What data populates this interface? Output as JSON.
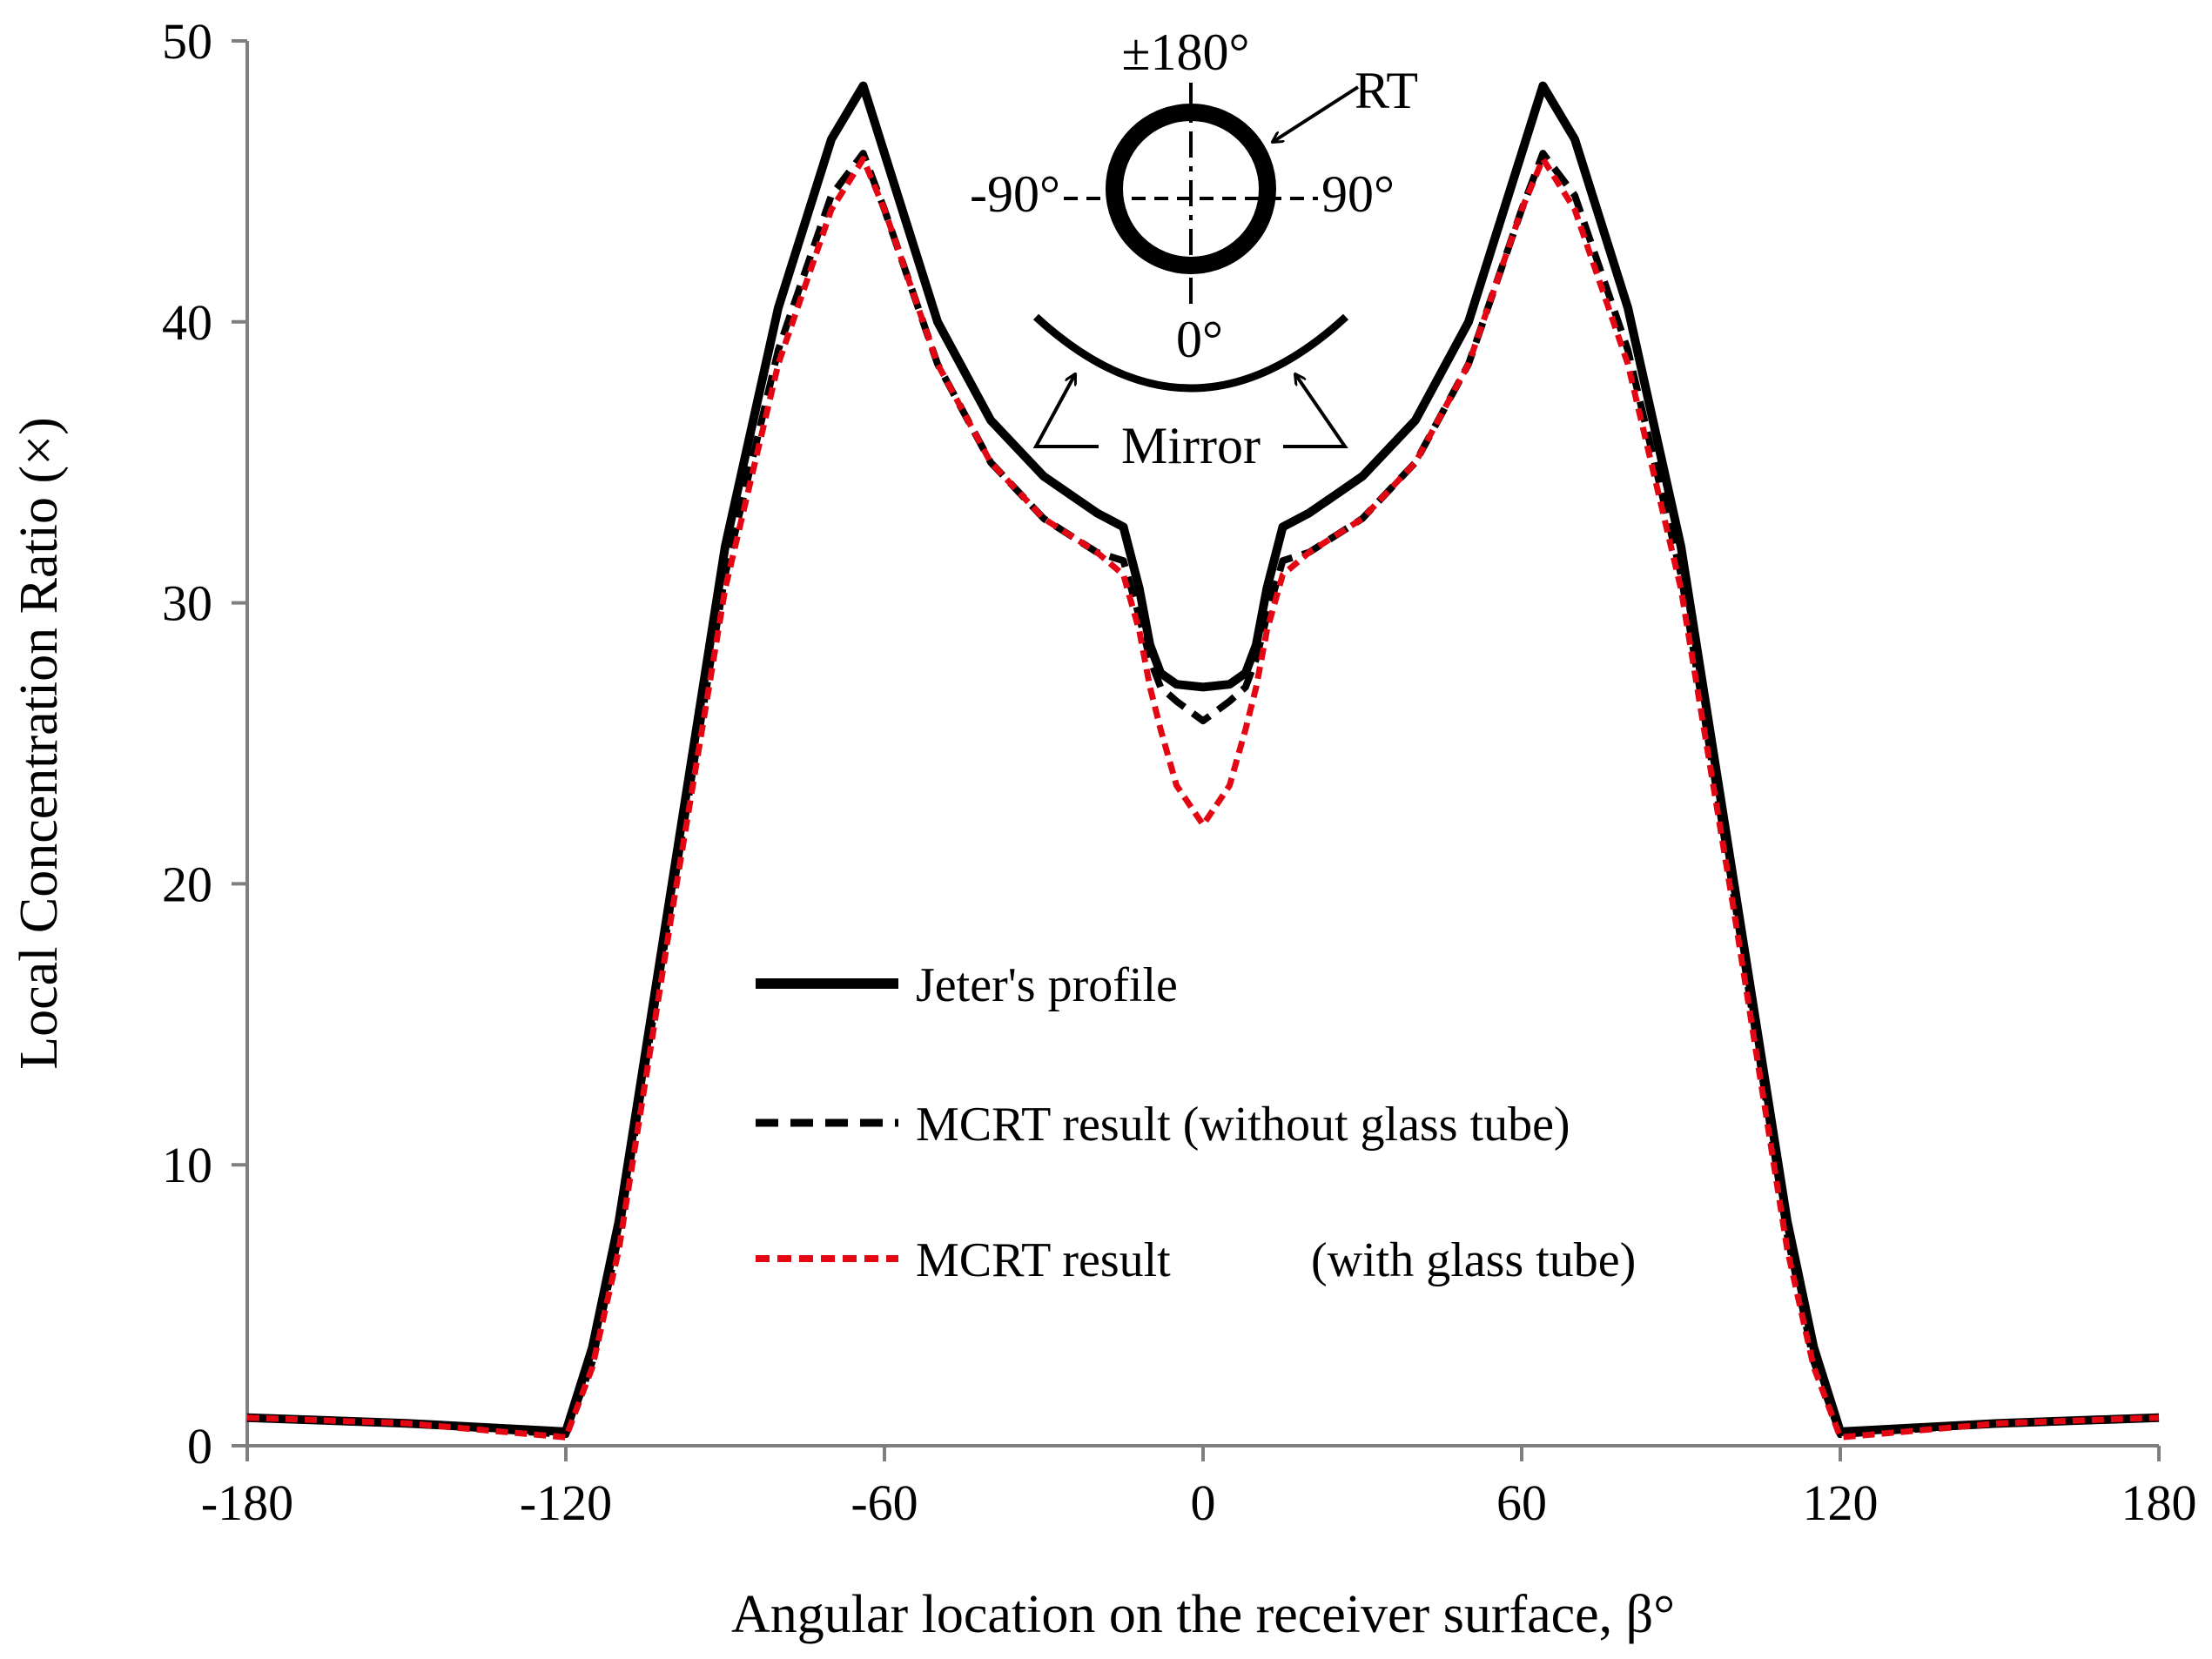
{
  "chart_data": {
    "type": "line",
    "title": "",
    "xlabel": "Angular location on the receiver surface, β°",
    "ylabel": "Local Concentration Ratio (×)",
    "xlim": [
      -180,
      180
    ],
    "ylim": [
      0,
      50
    ],
    "xticks": [
      -180,
      -120,
      -60,
      0,
      60,
      120,
      180
    ],
    "yticks": [
      0,
      10,
      20,
      30,
      40,
      50
    ],
    "grid": false,
    "legend_position": "lower-center",
    "series": [
      {
        "name": "Jeter's profile",
        "color": "#000000",
        "style": "solid",
        "x": [
          -180,
          -150,
          -120,
          -115,
          -110,
          -100,
          -90,
          -80,
          -70,
          -64,
          -60,
          -50,
          -40,
          -30,
          -20,
          -15,
          -12,
          -10,
          -8,
          -5,
          0,
          5,
          8,
          10,
          12,
          15,
          20,
          30,
          40,
          50,
          60,
          64,
          70,
          80,
          90,
          100,
          110,
          115,
          120,
          150,
          180
        ],
        "y": [
          1.0,
          0.8,
          0.5,
          3.5,
          8.0,
          20.0,
          32.0,
          40.5,
          46.5,
          48.4,
          46.0,
          40.0,
          36.5,
          34.5,
          33.2,
          32.7,
          30.5,
          28.5,
          27.5,
          27.1,
          27.0,
          27.1,
          27.5,
          28.5,
          30.5,
          32.7,
          33.2,
          34.5,
          36.5,
          40.0,
          46.0,
          48.4,
          46.5,
          40.5,
          32.0,
          20.0,
          8.0,
          3.5,
          0.5,
          0.8,
          1.0
        ]
      },
      {
        "name": "MCRT result (without glass tube)",
        "color": "#000000",
        "style": "dashed",
        "x": [
          -180,
          -150,
          -120,
          -115,
          -110,
          -100,
          -90,
          -80,
          -70,
          -64,
          -60,
          -50,
          -40,
          -30,
          -20,
          -15,
          -12,
          -10,
          -8,
          -5,
          0,
          5,
          8,
          10,
          12,
          15,
          20,
          30,
          40,
          50,
          60,
          64,
          70,
          80,
          90,
          100,
          110,
          115,
          120,
          150,
          180
        ],
        "y": [
          1.0,
          0.8,
          0.4,
          3.0,
          7.5,
          19.5,
          31.0,
          39.0,
          44.5,
          46.0,
          44.0,
          38.5,
          35.0,
          33.0,
          31.8,
          31.5,
          29.5,
          28.0,
          27.0,
          26.5,
          25.8,
          26.5,
          27.0,
          28.0,
          29.5,
          31.5,
          31.8,
          33.0,
          35.0,
          38.5,
          44.0,
          46.0,
          44.5,
          39.0,
          31.0,
          19.5,
          7.5,
          3.0,
          0.4,
          0.8,
          1.0
        ]
      },
      {
        "name": "MCRT result (with glass tube)",
        "color": "#e30613",
        "style": "dashed",
        "x": [
          -180,
          -150,
          -120,
          -115,
          -110,
          -100,
          -90,
          -80,
          -70,
          -64,
          -60,
          -50,
          -40,
          -30,
          -20,
          -15,
          -12,
          -10,
          -8,
          -5,
          0,
          5,
          8,
          10,
          12,
          15,
          20,
          30,
          40,
          50,
          60,
          64,
          70,
          80,
          90,
          100,
          110,
          115,
          120,
          150,
          180
        ],
        "y": [
          1.0,
          0.8,
          0.3,
          2.8,
          7.0,
          19.0,
          30.5,
          38.5,
          44.0,
          45.8,
          44.0,
          38.5,
          35.0,
          33.0,
          31.8,
          31.0,
          29.0,
          27.0,
          25.5,
          23.5,
          22.1,
          23.5,
          25.5,
          27.0,
          29.0,
          31.0,
          31.8,
          33.0,
          35.0,
          38.5,
          44.0,
          45.8,
          44.0,
          38.5,
          30.5,
          19.0,
          7.0,
          2.8,
          0.3,
          0.8,
          1.0
        ]
      }
    ],
    "legend": {
      "jeter": "Jeter's profile",
      "without_glass": "MCRT result (without glass tube)",
      "with_glass_a": "MCRT result",
      "with_glass_b": "(with glass tube)"
    },
    "annotations": {
      "top": "±180°",
      "left": "-90°",
      "right": "90°",
      "bottom": "0°",
      "receiver": "RT",
      "mirror": "Mirror"
    }
  }
}
